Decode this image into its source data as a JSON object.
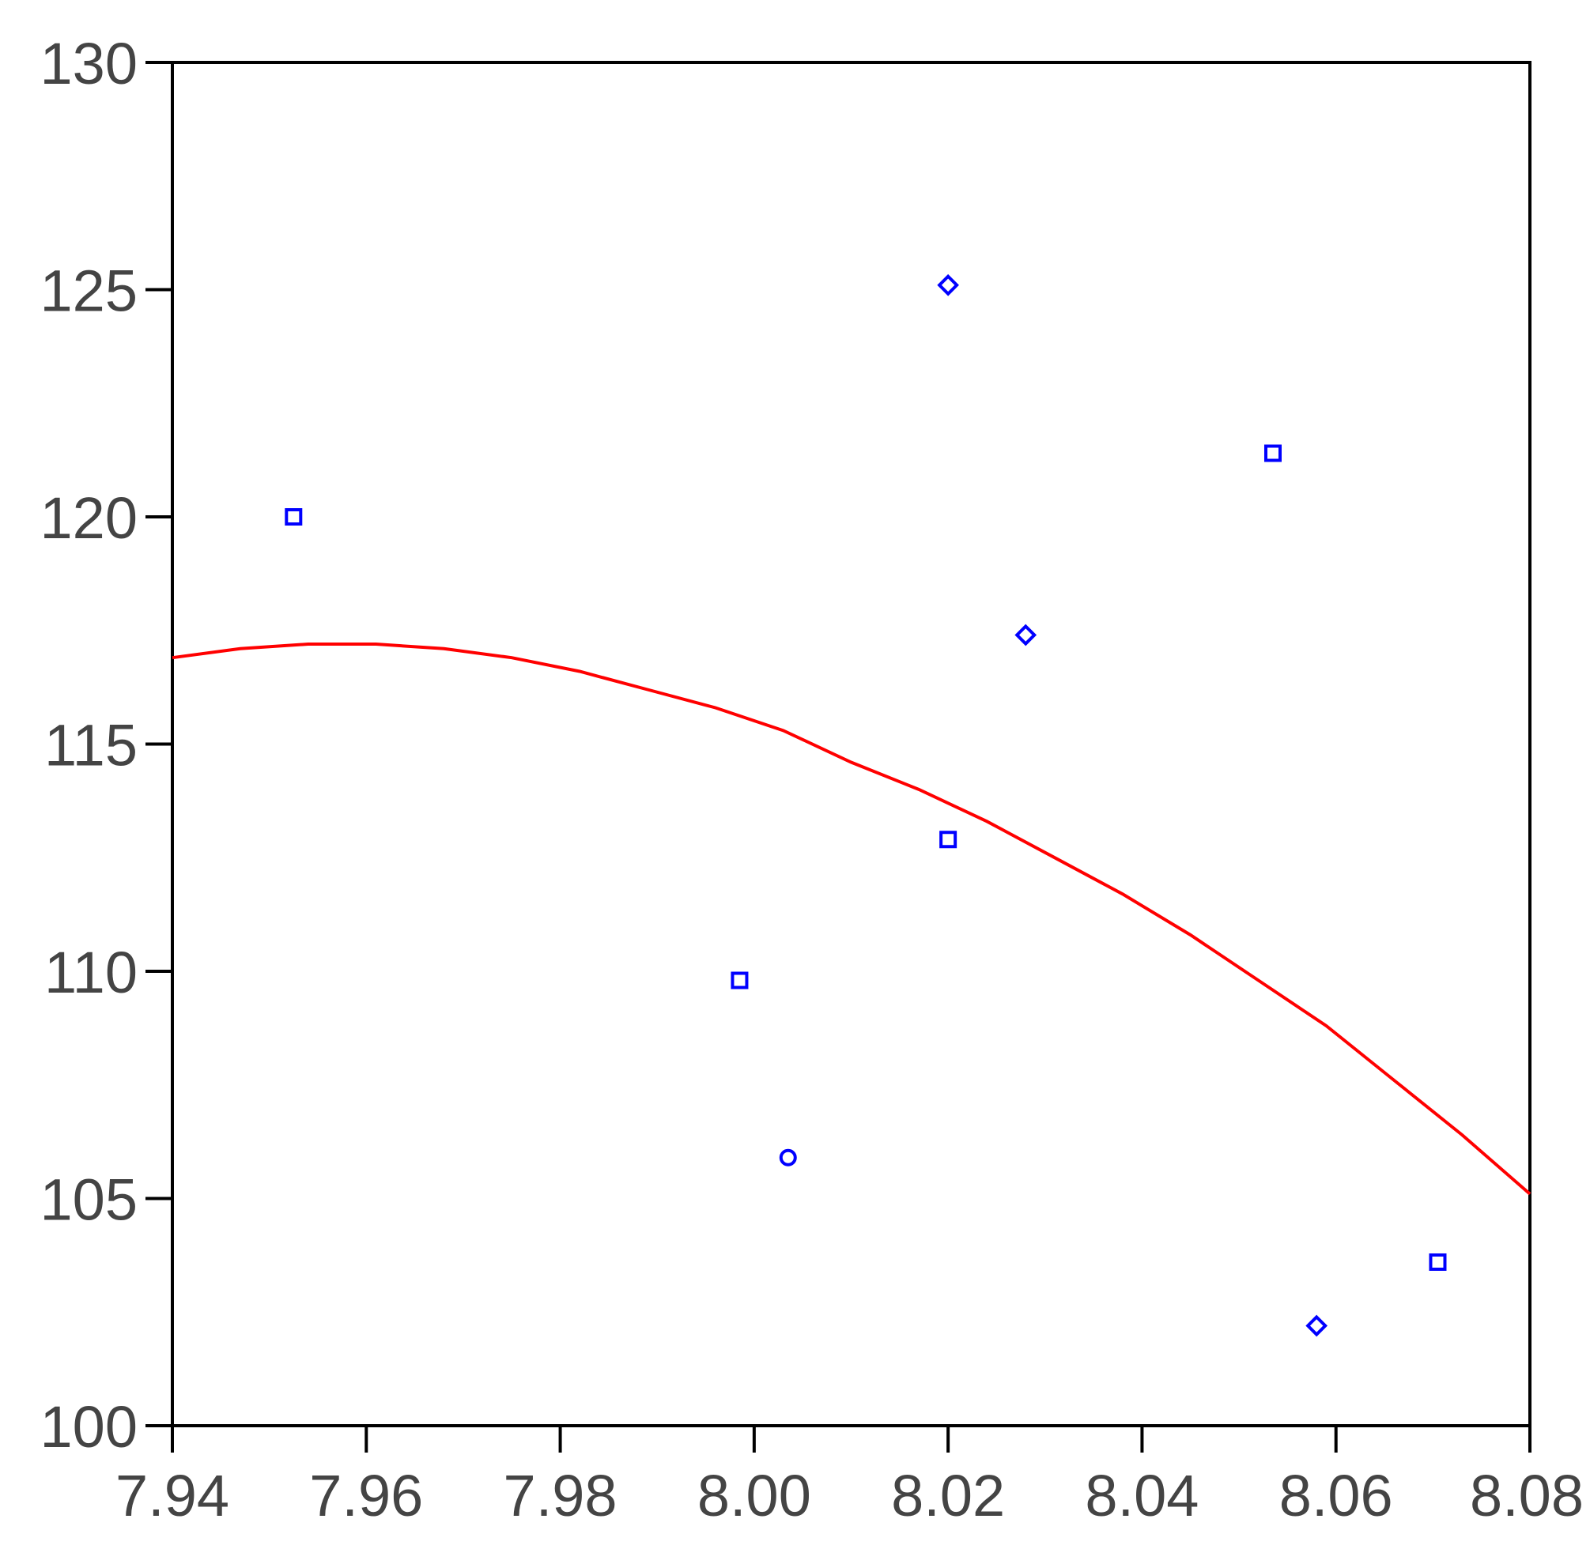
{
  "chart_data": {
    "type": "scatter",
    "title": "",
    "xlabel": "",
    "ylabel": "",
    "xlim": [
      7.94,
      8.08
    ],
    "ylim": [
      100,
      130
    ],
    "x_ticks": [
      7.94,
      7.96,
      7.98,
      8.0,
      8.02,
      8.04,
      8.06,
      8.08
    ],
    "x_tick_labels": [
      "7.94",
      "7.96",
      "7.98",
      "8.00",
      "8.02",
      "8.04",
      "8.06",
      "8.08"
    ],
    "y_ticks": [
      100,
      105,
      110,
      115,
      120,
      125,
      130
    ],
    "y_tick_labels": [
      "100",
      "105",
      "110",
      "115",
      "120",
      "125",
      "130"
    ],
    "grid": false,
    "legend": "none",
    "series": [
      {
        "type": "scatter",
        "color": "#0000ff",
        "points": [
          {
            "x": 7.9525,
            "y": 120.0,
            "marker": "square"
          },
          {
            "x": 7.9985,
            "y": 109.8,
            "marker": "square"
          },
          {
            "x": 8.0035,
            "y": 105.9,
            "marker": "circle"
          },
          {
            "x": 8.02,
            "y": 125.1,
            "marker": "diamond"
          },
          {
            "x": 8.02,
            "y": 112.9,
            "marker": "square"
          },
          {
            "x": 8.028,
            "y": 117.4,
            "marker": "diamond"
          },
          {
            "x": 8.0535,
            "y": 121.4,
            "marker": "square"
          },
          {
            "x": 8.058,
            "y": 102.2,
            "marker": "diamond"
          },
          {
            "x": 8.0705,
            "y": 103.6,
            "marker": "square"
          }
        ]
      },
      {
        "type": "line",
        "color": "#ff0000",
        "x": [
          7.94,
          7.947,
          7.954,
          7.961,
          7.968,
          7.975,
          7.982,
          7.989,
          7.996,
          8.003,
          8.01,
          8.017,
          8.024,
          8.031,
          8.038,
          8.045,
          8.052,
          8.059,
          8.066,
          8.073,
          8.08
        ],
        "y": [
          116.9,
          117.1,
          117.2,
          117.2,
          117.1,
          116.9,
          116.6,
          116.2,
          115.8,
          115.3,
          114.6,
          114.0,
          113.3,
          112.5,
          111.7,
          110.8,
          109.8,
          108.8,
          107.6,
          106.4,
          105.1
        ]
      }
    ]
  }
}
